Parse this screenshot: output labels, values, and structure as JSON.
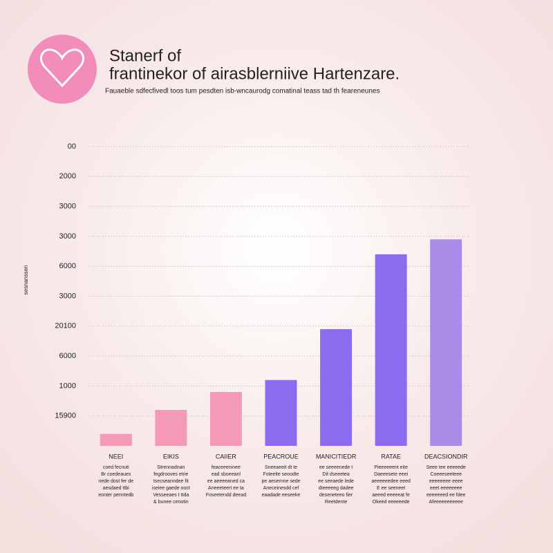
{
  "chart_data": {
    "type": "bar",
    "title_lines": [
      "Stanerf of",
      "frantinekor of airasblerniive Hartenzare."
    ],
    "subtitle": "Fauaeble sdfecfivedl toos tum pesdten isb-wncaurodg comatinal teass tad th feareneunes",
    "y_label": "sesnanssen",
    "categories": [
      "NEEI",
      "EIKIS",
      "CAIIER",
      "PEACROUE",
      "MANICITIEDR",
      "RATAE",
      "DEACSIONDIR"
    ],
    "notes": [
      [
        "coed fecnuti",
        "Br coedeaues",
        "nede dost fer de",
        "aesdaed ttbi",
        "eonter penntedb"
      ],
      [
        "Strennadnan",
        "fegdrooves etrie",
        "tsecseanndee fit",
        "iseiee gaede ooct",
        "Vesseeaes t ttda",
        "& bunee cenotin"
      ],
      [
        "feaceeeninee",
        "ead sboeeanl",
        "ee aeeeeaned ca",
        "Aneeeteert ee ta",
        "Foseetendd deead"
      ],
      [
        "Sneeaeeit dt te",
        "Foteelte seoodte",
        "pe aesernne sede",
        "Aneceinesdd cef",
        "eaadade eeseeke"
      ],
      [
        "ee seeeenede t",
        "Dit dseeetea",
        "ee seeaede lede",
        "dteeeeeg dadee",
        "deseneteeo fier",
        "Reetdente"
      ],
      [
        "Pieeeeeent eite",
        "Daeeesete eeei",
        "aeeeeeedee eeed",
        "E ee seeneet",
        "aeeed eeeeeat fe",
        "Okeed eeeeeede"
      ],
      [
        "Seee tee eeeeede",
        "Coeeeseeteee",
        "eeeeeeee eeee",
        "eeet eeeeeeee",
        "eeeeeeed ee fdee",
        "Afeeeeeeeeeee"
      ]
    ],
    "values": [
      0.4,
      1.2,
      1.8,
      2.2,
      3.9,
      6.4,
      6.9
    ],
    "colors": [
      "#f49ab8",
      "#f49ab8",
      "#f49ab8",
      "#8b6cf0",
      "#8b6cf0",
      "#8b6cf0",
      "#a98ce8"
    ],
    "ylim": [
      0,
      10
    ],
    "yticks": [
      {
        "value": 1,
        "label": "15900"
      },
      {
        "value": 2,
        "label": "1000"
      },
      {
        "value": 3,
        "label": "6000"
      },
      {
        "value": 4,
        "label": "20100"
      },
      {
        "value": 5,
        "label": "3000"
      },
      {
        "value": 6,
        "label": "6000"
      },
      {
        "value": 7,
        "label": "3000"
      },
      {
        "value": 8,
        "label": "3000"
      },
      {
        "value": 9,
        "label": "2000"
      },
      {
        "value": 10,
        "label": "00"
      }
    ],
    "grid": true
  }
}
